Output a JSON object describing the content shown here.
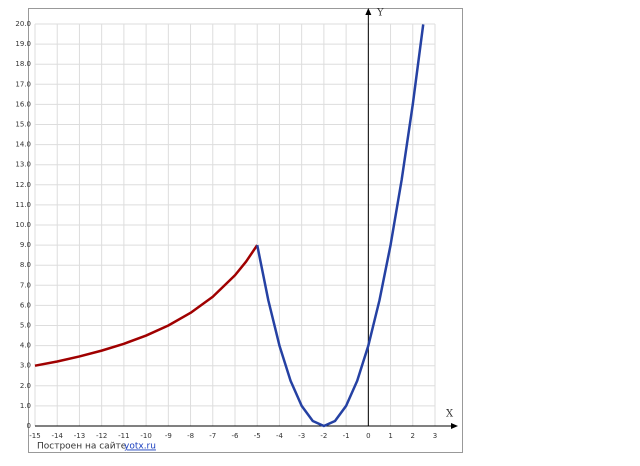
{
  "chart_data": {
    "type": "line",
    "x_label": "X",
    "y_label": "Y",
    "xlim": [
      -15,
      3
    ],
    "ylim": [
      0,
      20
    ],
    "xticks": [
      -15,
      -14,
      -13,
      -12,
      -11,
      -10,
      -9,
      -8,
      -7,
      -6,
      -5,
      -4,
      -3,
      -2,
      -1,
      0,
      1,
      2,
      3
    ],
    "yticks": [
      0,
      {
        "value": 1,
        "label": "1.0"
      },
      {
        "value": 2,
        "label": "2.0"
      },
      {
        "value": 3,
        "label": "3.0"
      },
      {
        "value": 4,
        "label": "4.0"
      },
      {
        "value": 5,
        "label": "5.0"
      },
      {
        "value": 6,
        "label": "6.0"
      },
      {
        "value": 7,
        "label": "7.0"
      },
      {
        "value": 8,
        "label": "8.0"
      },
      {
        "value": 9,
        "label": "9.0"
      },
      {
        "value": 10,
        "label": "10.0"
      },
      {
        "value": 11,
        "label": "11.0"
      },
      {
        "value": 12,
        "label": "12.0"
      },
      {
        "value": 13,
        "label": "13.0"
      },
      {
        "value": 14,
        "label": "14.0"
      },
      {
        "value": 15,
        "label": "15.0"
      },
      {
        "value": 16,
        "label": "16.0"
      },
      {
        "value": 17,
        "label": "17.0"
      },
      {
        "value": 18,
        "label": "18.0"
      },
      {
        "value": 19,
        "label": "19.0"
      },
      {
        "value": 20,
        "label": "20.0"
      }
    ],
    "grid": true,
    "series": [
      {
        "color": "#a00000",
        "x": [
          -15,
          -14,
          -13,
          -12,
          -11,
          -10,
          -9,
          -8,
          -7,
          -6,
          -5.5,
          -5
        ],
        "values": [
          3,
          3.21,
          3.46,
          3.75,
          4.09,
          4.5,
          5,
          5.63,
          6.43,
          7.5,
          8.18,
          9
        ]
      },
      {
        "color": "#2541a3",
        "x": [
          -5,
          -4.5,
          -4,
          -3.5,
          -3,
          -2.5,
          -2,
          -1.5,
          -1,
          -0.5,
          0,
          0.5,
          1,
          1.5,
          2,
          2.47
        ],
        "values": [
          9,
          6.25,
          4,
          2.25,
          1,
          0.25,
          0,
          0.25,
          1,
          2.25,
          4,
          6.25,
          9,
          12.25,
          16,
          19.98
        ]
      }
    ],
    "source_text": "Построен на сайте",
    "source_link": "yotx.ru"
  }
}
